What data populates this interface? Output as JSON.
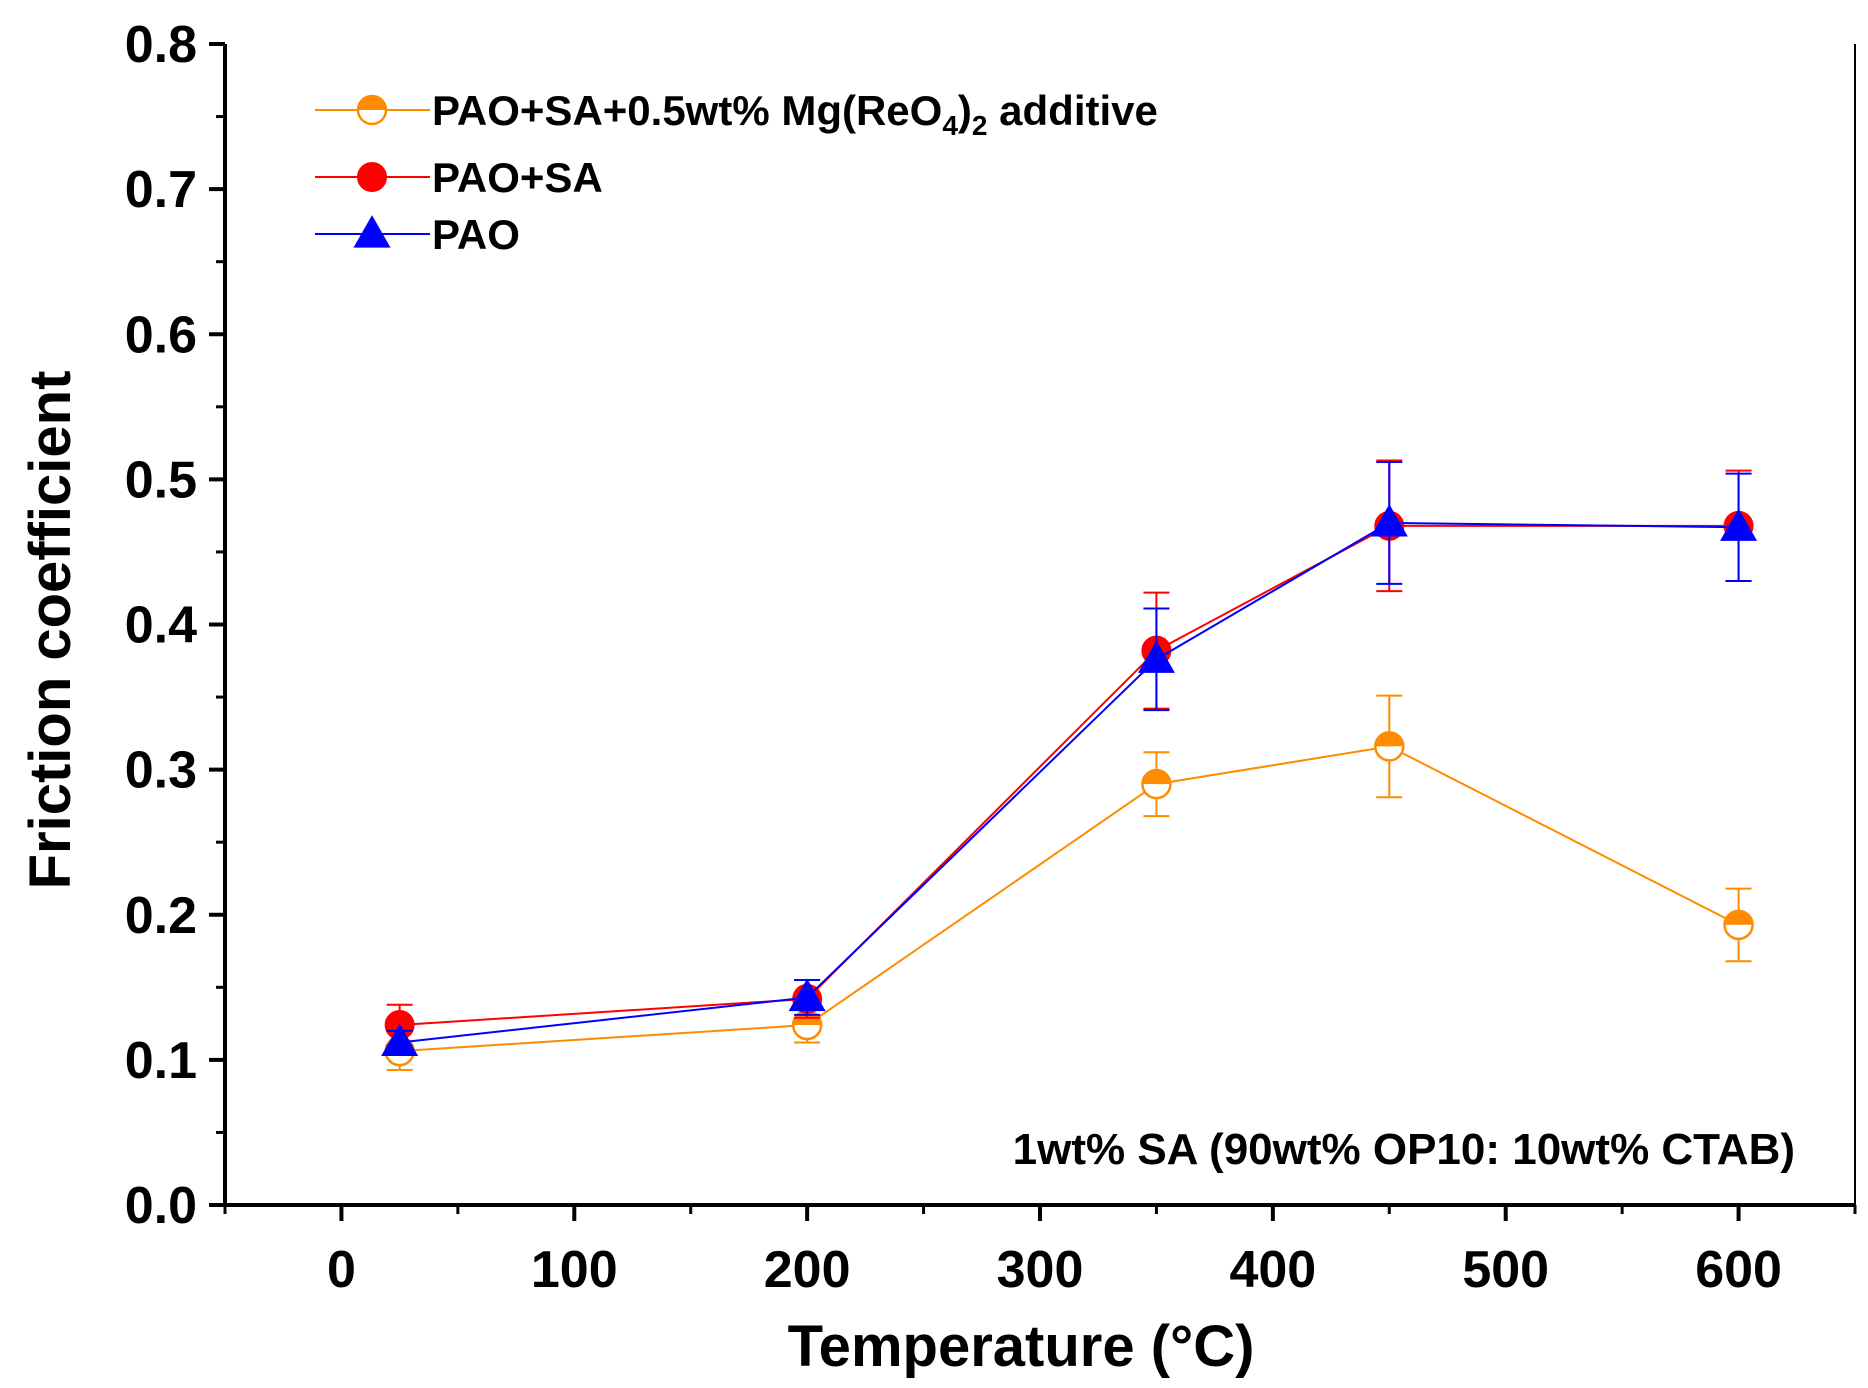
{
  "chart_data": {
    "type": "line",
    "title": "",
    "xlabel": "Temperature (°C)",
    "ylabel": "Friction coefficient",
    "xlim": [
      -50,
      650
    ],
    "ylim": [
      0,
      0.8
    ],
    "xticks": [
      "0",
      "100",
      "200",
      "300",
      "400",
      "500",
      "600"
    ],
    "xtick_values": [
      0,
      100,
      200,
      300,
      400,
      500,
      600
    ],
    "yticks": [
      "0.0",
      "0.1",
      "0.2",
      "0.3",
      "0.4",
      "0.5",
      "0.6",
      "0.7",
      "0.8"
    ],
    "ytick_values": [
      0,
      0.1,
      0.2,
      0.3,
      0.4,
      0.5,
      0.6,
      0.7,
      0.8
    ],
    "legend_position": "top-left",
    "annotation": "1wt% SA (90wt% OP10: 10wt% CTAB)",
    "grid": false,
    "series": [
      {
        "name": "PAO+SA+0.5wt% Mg(ReO4)2 additive",
        "legend_parts": {
          "main": "PAO+SA+0.5wt% Mg(ReO",
          "sub1": "4",
          "mid": ")",
          "sub2": "2",
          "tail": " additive"
        },
        "color": "#ff8c00",
        "marker": "half-circle",
        "x": [
          25,
          200,
          350,
          450,
          600
        ],
        "y": [
          0.106,
          0.124,
          0.29,
          0.316,
          0.193
        ],
        "err": [
          0.013,
          0.012,
          0.022,
          0.035,
          0.025
        ]
      },
      {
        "name": "PAO+SA",
        "color": "#ff0000",
        "marker": "circle",
        "x": [
          25,
          200,
          350,
          450,
          600
        ],
        "y": [
          0.124,
          0.142,
          0.382,
          0.468,
          0.468
        ],
        "err": [
          0.014,
          0.013,
          0.04,
          0.045,
          0.038
        ]
      },
      {
        "name": "PAO",
        "color": "#0000ff",
        "marker": "triangle",
        "x": [
          25,
          200,
          350,
          450,
          600
        ],
        "y": [
          0.112,
          0.143,
          0.376,
          0.47,
          0.467
        ],
        "err": [
          0.008,
          0.012,
          0.035,
          0.042,
          0.037
        ]
      }
    ]
  }
}
